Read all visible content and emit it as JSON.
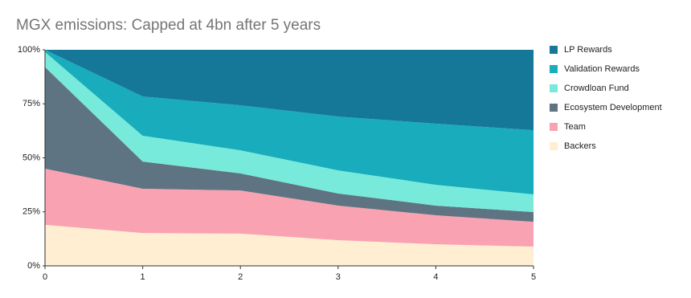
{
  "chart_data": {
    "type": "stacked_area",
    "title": "MGX emissions: Capped at 4bn after 5 years",
    "x": [
      0,
      1,
      2,
      3,
      4,
      5
    ],
    "xlim": [
      0,
      5
    ],
    "xticks": [
      0,
      1,
      2,
      3,
      4,
      5
    ],
    "ylim": [
      0,
      100
    ],
    "yticks": [
      {
        "value": 0,
        "label": "0%"
      },
      {
        "value": 25,
        "label": "25%"
      },
      {
        "value": 50,
        "label": "50%"
      },
      {
        "value": 75,
        "label": "75%"
      },
      {
        "value": 100,
        "label": "100%"
      }
    ],
    "legend": "right",
    "series": [
      {
        "name": "Backers",
        "color": "#ffeed1",
        "values": [
          19,
          15.2,
          14.9,
          11.9,
          10,
          8.9
        ]
      },
      {
        "name": "Team",
        "color": "#f9a3b2",
        "values": [
          26,
          20.5,
          20,
          16,
          13.4,
          11.5
        ]
      },
      {
        "name": "Ecosystem Development",
        "color": "#5f7482",
        "values": [
          47,
          12.6,
          7.9,
          5.6,
          4.5,
          4.5
        ]
      },
      {
        "name": "Crowdloan Fund",
        "color": "#78eadb",
        "values": [
          7,
          11.9,
          10.7,
          10.7,
          9.6,
          8.2
        ]
      },
      {
        "name": "Validation Rewards",
        "color": "#18acbc",
        "values": [
          1,
          18.2,
          20.8,
          24.9,
          28.3,
          29.7
        ]
      },
      {
        "name": "LP Rewards",
        "color": "#157899",
        "values": [
          0,
          21.6,
          25.7,
          30.9,
          34.2,
          37.2
        ]
      }
    ]
  }
}
